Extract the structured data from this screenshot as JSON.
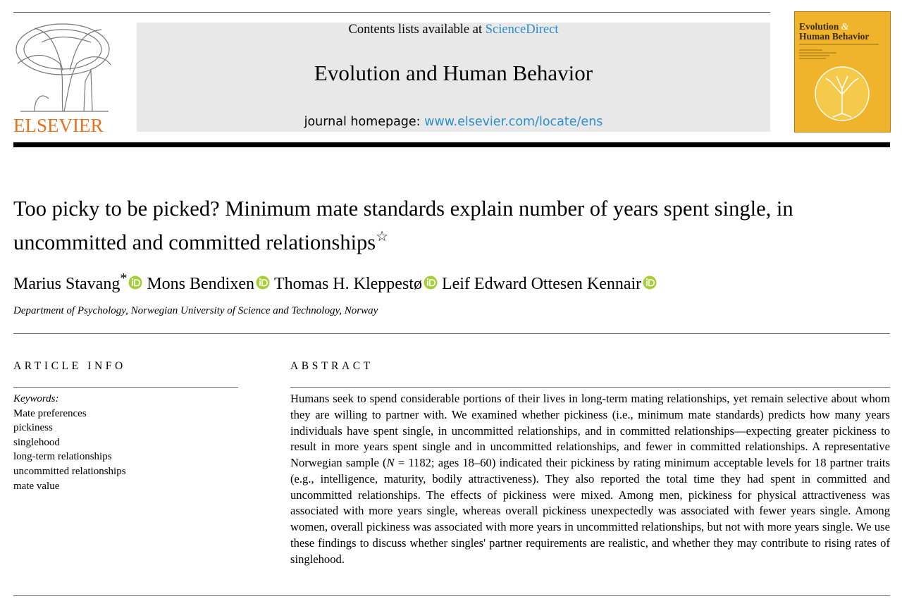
{
  "header": {
    "contents_prefix": "Contents lists available at",
    "contents_link": "ScienceDirect",
    "journal": "Evolution and Human Behavior",
    "homepage_prefix": "journal homepage:",
    "homepage_link": "www.elsevier.com/locate/ens",
    "publisher": "ELSEVIER",
    "cover_title_1": "Evolution",
    "cover_amp": "&",
    "cover_title_2": "Human Behavior"
  },
  "article": {
    "title": "Too picky to be picked? Minimum mate standards explain number of years spent single, in uncommitted and committed relationships",
    "title_mark": "☆",
    "authors": [
      {
        "name": "Marius Stavang",
        "mark": "*"
      },
      {
        "name": "Mons Bendixen"
      },
      {
        "name": "Thomas H. Kleppestø"
      },
      {
        "name": "Leif Edward Ottesen Kennair"
      }
    ],
    "affiliation": "Department of Psychology, Norwegian University of Science and Technology, Norway"
  },
  "article_info": {
    "heading": "ARTICLE INFO",
    "keywords_label": "Keywords:",
    "keywords": [
      "Mate preferences",
      "pickiness",
      "singlehood",
      "long-term relationships",
      "uncommitted relationships",
      "mate value"
    ]
  },
  "abstract": {
    "heading": "ABSTRACT",
    "text_1": "Humans seek to spend considerable portions of their lives in long-term mating relationships, yet remain selective about whom they are willing to partner with. We examined whether pickiness (i.e., minimum mate standards) predicts how many years individuals have spent single, in uncommitted relationships, and in committed relationships—expecting greater pickiness to result in more years spent single and in uncommitted relationships, and fewer in committed relationships. A representative Norwegian sample (",
    "text_n": "N",
    "text_2": " = 1182; ages 18–60) indicated their pickiness by rating minimum acceptable levels for 18 partner traits (e.g., intelligence, maturity, bodily attractiveness). They also reported the total time they had spent in committed and uncommitted relationships. The effects of pickiness were mixed. Among men, pickiness for physical attractiveness was associated with more years single, whereas overall pickiness unexpectedly was associated with fewer years single. Among women, overall pickiness was associated with more years in uncommitted relationships, but not with more years single. We use these findings to discuss whether singles' partner requirements are realistic, and whether they may contribute to rising rates of singlehood."
  }
}
